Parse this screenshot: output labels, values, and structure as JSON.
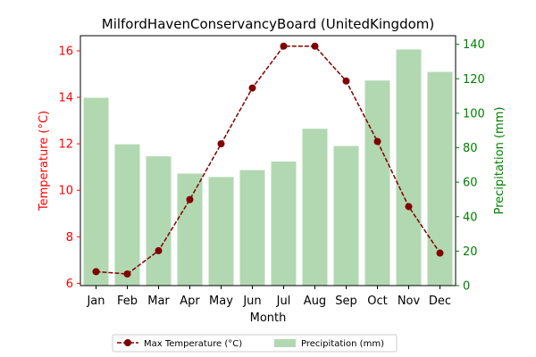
{
  "chart_data": {
    "type": "bar",
    "title": "MilfordHavenConservancyBoard (UnitedKingdom)",
    "xlabel": "Month",
    "ylabel_left": "Temperature (°C)",
    "ylabel_right": "Precipitation (mm)",
    "categories": [
      "Jan",
      "Feb",
      "Mar",
      "Apr",
      "May",
      "Jun",
      "Jul",
      "Aug",
      "Sep",
      "Oct",
      "Nov",
      "Dec"
    ],
    "temperature": {
      "name": "Max Temperature (°C)",
      "type": "line",
      "axis": "left",
      "color": "#800000",
      "values": [
        6.5,
        6.4,
        7.4,
        9.6,
        12.0,
        14.4,
        16.2,
        16.2,
        14.7,
        12.1,
        9.3,
        7.3
      ]
    },
    "precipitation": {
      "name": "Precipitation (mm)",
      "type": "bar",
      "axis": "right",
      "color": "#b2d8b2",
      "values": [
        109,
        82,
        75,
        65,
        63,
        67,
        72,
        91,
        81,
        119,
        137,
        124
      ]
    },
    "ylim_left": [
      5.9,
      16.65
    ],
    "ylim_right": [
      0,
      145
    ],
    "yticks_left": [
      "6",
      "8",
      "10",
      "12",
      "14",
      "16"
    ],
    "yticks_right": [
      "0",
      "20",
      "40",
      "60",
      "80",
      "100",
      "120",
      "140"
    ],
    "left_axis_color": "#ff0000",
    "right_axis_color": "#008000",
    "grid": false,
    "legend_placement": "bottom-center"
  }
}
